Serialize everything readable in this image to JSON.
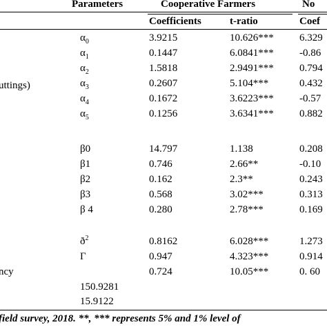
{
  "header": {
    "parameters": "Parameters",
    "group1": "Cooperative Farmers",
    "group2": "No",
    "coefficients": "Coefficients",
    "tratio": "t-ratio",
    "coef2": "Coef"
  },
  "stub": {
    "cuttings": "uttings)",
    "efficiency": "ncy"
  },
  "rows": [
    {
      "param": "α",
      "sub": "0",
      "coef": "3.9215",
      "t": "10.626***",
      "c2": "6.329"
    },
    {
      "param": "α",
      "sub": "1",
      "coef": "0.1447",
      "t": "6.0841***",
      "c2": "-0.86"
    },
    {
      "param": "α",
      "sub": "2",
      "coef": "1.5818",
      "t": "2.9491***",
      "c2": "0.794"
    },
    {
      "param": "α",
      "sub": "3",
      "coef": "0.2607",
      "t": "5.104***",
      "c2": "0.432"
    },
    {
      "param": "α",
      "sub": "4",
      "coef": "0.1672",
      "t": "3.6223***",
      "c2": "-0.57"
    },
    {
      "param": "α",
      "sub": "5",
      "coef": "0.1256",
      "t": "3.6341***",
      "c2": "0.882"
    },
    {
      "param": "β0",
      "sub": "",
      "coef": "14.797",
      "t": "1.138",
      "c2": "0.208"
    },
    {
      "param": "β1",
      "sub": "",
      "coef": "0.746",
      "t": "2.66**",
      "c2": "-0.10"
    },
    {
      "param": "β2",
      "sub": "",
      "coef": "0.162",
      "t": "2.3**",
      "c2": "0.243"
    },
    {
      "param": "β3",
      "sub": "",
      "coef": "0.568",
      "t": "3.02***",
      "c2": "0.313"
    },
    {
      "param": "β 4",
      "sub": "",
      "coef": "0.280",
      "t": "2.78***",
      "c2": "0.169"
    },
    {
      "param": "ð",
      "sup": "2",
      "coef": "0.8162",
      "t": "6.028***",
      "c2": "1.273"
    },
    {
      "param": "Γ",
      "sub": "",
      "coef": "0.947",
      "t": "4.323***",
      "c2": "0.914"
    },
    {
      "param": "",
      "sub": "",
      "coef": "0.724",
      "t": "10.05***",
      "c2": "0. 60"
    }
  ],
  "extra": {
    "loglik": "150.9281",
    "lr": "15.9122"
  },
  "footnote": "field survey, 2018.  **, *** represents 5% and 1% level of"
}
